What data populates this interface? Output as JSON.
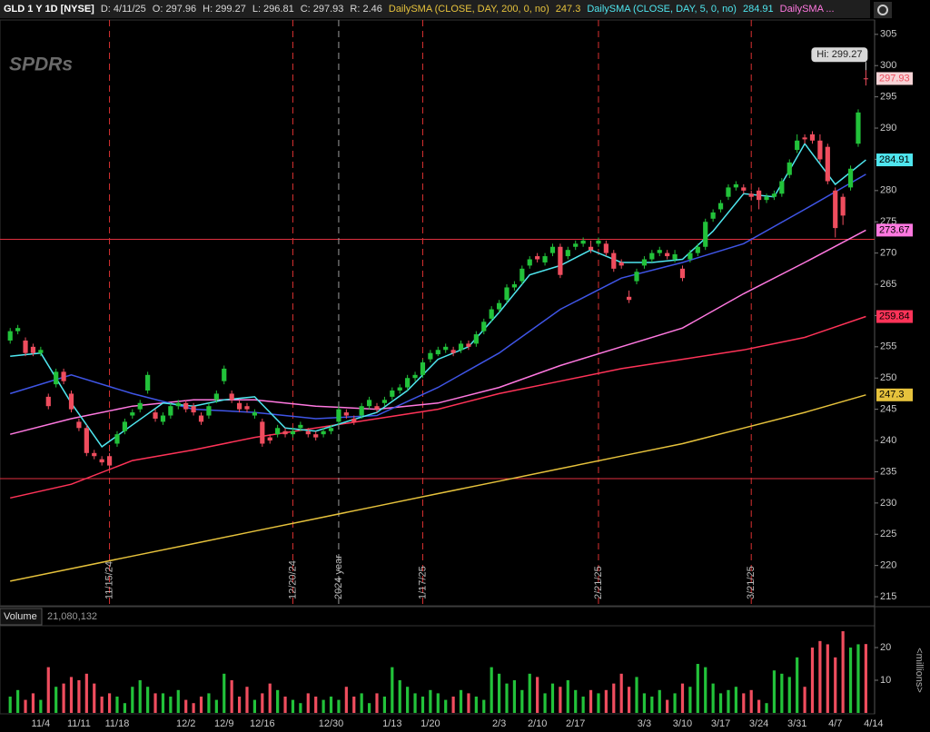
{
  "header": {
    "symbol": "GLD 1 Y 1D [NYSE]",
    "date": "D: 4/11/25",
    "open": "O: 297.96",
    "high": "H: 299.27",
    "low": "L: 296.81",
    "close": "C: 297.93",
    "range": "R: 2.46",
    "more": "DailySMA ..."
  },
  "chart_data": [
    {
      "type": "candlestick",
      "watermark": "SPDRs",
      "up_color": "#22c23a",
      "down_color": "#ef4d5e",
      "open": [
        256,
        257.5,
        256,
        255,
        254,
        247,
        249,
        251,
        247.5,
        243,
        242,
        238,
        237,
        237.5,
        239.5,
        241.5,
        244,
        245,
        248,
        244.5,
        243,
        244,
        245.5,
        246,
        245.5,
        244,
        244,
        246.5,
        249.5,
        247.5,
        246,
        245.5,
        244,
        243,
        240.5,
        241,
        241.5,
        241,
        242,
        241.5,
        241,
        241,
        241.5,
        243,
        244.5,
        243.5,
        244,
        245.5,
        245.5,
        246,
        247,
        248,
        248.5,
        250,
        250.5,
        253,
        253.8,
        254.5,
        254.5,
        254.5,
        255.5,
        255.5,
        257.5,
        259.5,
        261,
        262.5,
        264.5,
        265.5,
        268,
        269.5,
        268.5,
        270,
        271,
        269.5,
        271,
        271.5,
        271,
        271.5,
        271.5,
        270,
        268.5,
        263,
        265.5,
        268,
        269,
        270,
        270,
        269,
        267.5,
        269,
        270,
        271,
        275.5,
        277,
        279,
        280.5,
        280.5,
        279.5,
        280,
        278.5,
        279,
        279.5,
        282.5,
        286.5,
        288.5,
        289,
        288,
        287,
        280,
        279,
        280.5,
        287.5,
        297.96,
        null
      ],
      "high": [
        258,
        258.5,
        256.5,
        255.5,
        255,
        247.5,
        251.5,
        251.5,
        248,
        243.5,
        242.5,
        238.5,
        237.5,
        238,
        241.5,
        243.5,
        245,
        246.5,
        251,
        245,
        244.5,
        246,
        246.5,
        246.5,
        246,
        244.5,
        246,
        248,
        252,
        248,
        246.5,
        246,
        245,
        243.5,
        241,
        242.5,
        242,
        242,
        243,
        242,
        241.5,
        242,
        242.5,
        245.5,
        245,
        244,
        246,
        247,
        246,
        247,
        248.5,
        249,
        250.5,
        251,
        253,
        254.5,
        255,
        255.5,
        255,
        256,
        256,
        257.5,
        259.5,
        261.5,
        262.5,
        265,
        265.5,
        268,
        269.5,
        270,
        270,
        271.5,
        271.5,
        271,
        272,
        272.5,
        272,
        272.5,
        272,
        270.5,
        269,
        264,
        267.5,
        269.5,
        270.5,
        271,
        270.5,
        270.5,
        268,
        270.5,
        271.5,
        275.5,
        277,
        278.5,
        281,
        281.5,
        281,
        280,
        280.5,
        279.5,
        280,
        282,
        285,
        289,
        289,
        289.5,
        289,
        287.5,
        280.5,
        279.5,
        284,
        293,
        299.27,
        null
      ],
      "low": [
        255.5,
        257,
        253.5,
        253.5,
        253.5,
        245,
        248.5,
        249,
        244.5,
        241.5,
        237.5,
        237,
        236,
        235.5,
        239,
        241,
        243.5,
        244.5,
        247.5,
        243,
        242.5,
        243.5,
        245,
        244.5,
        244,
        242.5,
        243.5,
        246,
        249,
        246,
        244.5,
        244.5,
        243.5,
        239,
        239.5,
        240.5,
        240.5,
        240.5,
        241.5,
        240.5,
        240,
        240.5,
        241,
        242.5,
        243.5,
        242.5,
        243.5,
        245,
        244.5,
        245.5,
        246.5,
        247.5,
        248,
        249.5,
        250,
        252.5,
        253.5,
        254,
        253.5,
        254,
        254.5,
        255,
        257,
        259,
        260.5,
        262,
        264,
        265,
        267.5,
        268.5,
        268,
        269.5,
        266,
        269,
        270.5,
        271,
        270,
        271,
        269.5,
        267,
        267.5,
        262,
        265,
        267.5,
        268.5,
        269.5,
        269,
        268.5,
        265.5,
        268.5,
        269.5,
        270.5,
        275,
        276.5,
        278.5,
        280,
        279.5,
        278.5,
        277,
        278,
        278.5,
        279,
        282,
        286,
        287.5,
        287.5,
        284.5,
        281,
        272.5,
        274.5,
        280,
        287,
        296.81,
        null
      ],
      "close": [
        257.5,
        258,
        254,
        254,
        254.5,
        245.5,
        251,
        249.5,
        245,
        242,
        238,
        237.5,
        236.5,
        236,
        241,
        243,
        244.5,
        246,
        250.5,
        243.5,
        244,
        245.5,
        246,
        245,
        244.5,
        243,
        245.5,
        247.5,
        251.5,
        246.5,
        245,
        245,
        244.5,
        239.5,
        240,
        242,
        241,
        241.5,
        242.5,
        241,
        240.5,
        241.5,
        242,
        245,
        244,
        243,
        245.5,
        246.5,
        245,
        246.5,
        248,
        248.5,
        250,
        250.5,
        252.5,
        254,
        254.5,
        255,
        254,
        255.5,
        255,
        257,
        259,
        261,
        262,
        264.5,
        265,
        267.5,
        269,
        269,
        269.5,
        271,
        266.5,
        270.5,
        271.5,
        272,
        270.5,
        272,
        270,
        267.5,
        268,
        262.5,
        267,
        269,
        270,
        270.5,
        269.5,
        269.8,
        266,
        270,
        271,
        275,
        276.5,
        278,
        280.5,
        281,
        280,
        279,
        278.5,
        279,
        279.5,
        281.5,
        284.5,
        288,
        288.2,
        288,
        285,
        281.5,
        274,
        276,
        283.5,
        292.5,
        297.93,
        null
      ],
      "lines": [
        {
          "name": "DailySMA (CLOSE, DAY, 200, 0, no)",
          "color": "#e6c23c",
          "value_tag": true,
          "x": [
            0,
            8,
            16,
            24,
            32,
            40,
            48,
            56,
            64,
            72,
            80,
            88,
            96,
            104,
            112
          ],
          "values": [
            217.5,
            219.5,
            221.5,
            223.5,
            225.5,
            227.5,
            229.5,
            231.5,
            233.5,
            235.5,
            237.5,
            239.5,
            242,
            244.5,
            247.3
          ]
        },
        {
          "color": "#ff3358",
          "value_tag": true,
          "x": [
            0,
            8,
            16,
            24,
            32,
            40,
            48,
            56,
            64,
            72,
            80,
            88,
            96,
            104,
            112
          ],
          "values": [
            230.8,
            233,
            236.8,
            238.5,
            240.5,
            242,
            243.5,
            245,
            247.5,
            249.5,
            251.5,
            253,
            254.5,
            256.5,
            259.84
          ]
        },
        {
          "color": "#ff78e0",
          "value_tag": true,
          "x": [
            0,
            8,
            16,
            24,
            32,
            40,
            48,
            56,
            64,
            72,
            80,
            88,
            96,
            104,
            112
          ],
          "values": [
            241,
            243.5,
            245.5,
            246.5,
            246.5,
            245.5,
            245,
            246,
            248.5,
            252,
            255,
            258,
            263.5,
            268.5,
            273.67
          ]
        },
        {
          "color": "#3f55e6",
          "value_tag": false,
          "x": [
            0,
            8,
            16,
            24,
            32,
            40,
            48,
            56,
            64,
            72,
            80,
            88,
            96,
            104,
            112
          ],
          "values": [
            247.5,
            250.5,
            247.5,
            245,
            244.5,
            243.5,
            244,
            248.5,
            254,
            261,
            266,
            268.5,
            271.5,
            277,
            282.6
          ]
        },
        {
          "name": "DailySMA (CLOSE, DAY, 5, 0, no)",
          "color": "#4fe6ef",
          "value_tag": true,
          "x": [
            0,
            4,
            8,
            12,
            16,
            20,
            24,
            28,
            32,
            36,
            40,
            44,
            48,
            52,
            56,
            60,
            64,
            68,
            72,
            76,
            80,
            84,
            88,
            92,
            96,
            100,
            104,
            108,
            112
          ],
          "values": [
            253.5,
            254,
            246,
            239,
            242.5,
            246,
            245.5,
            246.5,
            247,
            242,
            241.5,
            243,
            244.5,
            248,
            253,
            255,
            260.5,
            266.5,
            268,
            270.5,
            268.5,
            268.5,
            269,
            273.5,
            279.5,
            279,
            287.5,
            281,
            284.91
          ]
        }
      ],
      "hlines": [
        {
          "value": 272.2,
          "color": "#e03040"
        },
        {
          "value": 233.9,
          "color": "#e03040"
        }
      ],
      "vlines": [
        {
          "x": 13,
          "label": "11/15/24",
          "color": "#d83030"
        },
        {
          "x": 37,
          "label": "12/20/24",
          "color": "#d83030"
        },
        {
          "x": 43,
          "label": "2024 year",
          "color": "#9a9a9a"
        },
        {
          "x": 54,
          "label": "1/17/25",
          "color": "#d83030"
        },
        {
          "x": 77,
          "label": "2/21/25",
          "color": "#d83030"
        },
        {
          "x": 97,
          "label": "3/21/25",
          "color": "#d83030"
        }
      ],
      "annotations": [
        "Hi: 299.27"
      ],
      "ylim": [
        213.7,
        307.3
      ],
      "yticks": [
        215,
        220,
        225,
        230,
        235,
        240,
        245,
        250,
        255,
        260,
        265,
        270,
        275,
        280,
        285,
        290,
        295,
        300,
        305
      ]
    },
    {
      "type": "bar",
      "title": "Volume",
      "subtitle": "21,080,132",
      "ylabel": "<millions>",
      "categories": [
        null,
        null,
        null,
        null,
        "11/4",
        null,
        null,
        null,
        null,
        "11/11",
        null,
        null,
        null,
        null,
        "11/18",
        null,
        null,
        null,
        null,
        null,
        null,
        null,
        null,
        "12/2",
        null,
        null,
        null,
        null,
        "12/9",
        null,
        null,
        null,
        null,
        "12/16",
        null,
        null,
        null,
        null,
        null,
        null,
        null,
        null,
        "12/30",
        null,
        null,
        null,
        null,
        null,
        null,
        null,
        "1/13",
        null,
        null,
        null,
        null,
        "1/20",
        null,
        null,
        null,
        null,
        null,
        null,
        null,
        null,
        "2/3",
        null,
        null,
        null,
        null,
        "2/10",
        null,
        null,
        null,
        null,
        "2/17",
        null,
        null,
        null,
        null,
        null,
        null,
        null,
        null,
        "3/3",
        null,
        null,
        null,
        null,
        "3/10",
        null,
        null,
        null,
        null,
        "3/17",
        null,
        null,
        null,
        null,
        "3/24",
        null,
        null,
        null,
        null,
        "3/31",
        null,
        null,
        null,
        null,
        "4/7",
        null,
        null,
        null,
        null,
        "4/14"
      ],
      "values": [
        5,
        7,
        4,
        6,
        4,
        14,
        8,
        9,
        11,
        10,
        12,
        9,
        5,
        6,
        5,
        3,
        8,
        10,
        8,
        6,
        6,
        5,
        7,
        4,
        3,
        5,
        6,
        4,
        12,
        10,
        5,
        8,
        4,
        6,
        9,
        7,
        5,
        4,
        3,
        6,
        5,
        4,
        5,
        4,
        8,
        5,
        6,
        3,
        6,
        5,
        14,
        10,
        8,
        6,
        5,
        7,
        6,
        4,
        5,
        7,
        6,
        5,
        4,
        14,
        12,
        9,
        10,
        7,
        12,
        11,
        6,
        9,
        8,
        10,
        7,
        5,
        7,
        6,
        7,
        9,
        12,
        8,
        11,
        6,
        5,
        7,
        4,
        6,
        9,
        8,
        15,
        14,
        9,
        6,
        7,
        8,
        6,
        7,
        4,
        3,
        13,
        12,
        11,
        17,
        8,
        20,
        22,
        21,
        17,
        25,
        20,
        21,
        21.08,
        null
      ],
      "ylim": [
        0,
        26.4
      ],
      "yticks": [
        10,
        20
      ]
    }
  ]
}
